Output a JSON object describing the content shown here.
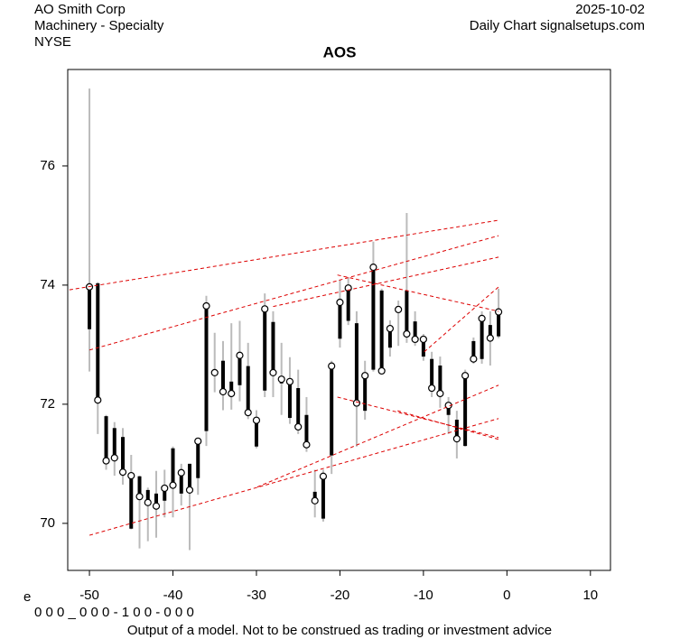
{
  "chart_data": {
    "type": "candlestick",
    "title": "AOS",
    "company": "AO Smith Corp",
    "industry": "Machinery - Specialty",
    "exchange": "NYSE",
    "date": "2025-10-02",
    "source": "Daily Chart signalsetups.com",
    "corner_mark": "e",
    "code": "0 0 0 _ 0 0 0 - 1 0 0 - 0 0 0",
    "footer": "Output of a model. Not to be construed as trading or investment advice",
    "x": [
      -50,
      -49,
      -48,
      -47,
      -46,
      -45,
      -44,
      -43,
      -42,
      -41,
      -40,
      -39,
      -38,
      -37,
      -36,
      -35,
      -34,
      -33,
      -32,
      -31,
      -30,
      -29,
      -28,
      -27,
      -26,
      -25,
      -24,
      -23,
      -22,
      -21,
      -20,
      -19,
      -18,
      -17,
      -16,
      -15,
      -14,
      -13,
      -12,
      -11,
      -10,
      -9,
      -8,
      -7,
      -6,
      -5,
      -4,
      -3,
      -2,
      -1
    ],
    "open": [
      73.26,
      74.03,
      71.8,
      71.6,
      71.45,
      69.91,
      70.79,
      70.56,
      70.5,
      70.38,
      71.26,
      70.5,
      71.0,
      70.76,
      71.55,
      72.58,
      72.73,
      72.38,
      72.32,
      72.64,
      71.29,
      72.23,
      73.38,
      72.35,
      71.77,
      72.27,
      71.82,
      70.53,
      70.08,
      71.14,
      73.1,
      73.4,
      73.36,
      71.89,
      72.58,
      73.91,
      72.95,
      73.65,
      73.91,
      73.39,
      72.8,
      72.76,
      72.65,
      71.82,
      71.74,
      71.3,
      73.06,
      72.76,
      73.33,
      73.14
    ],
    "high": [
      77.3,
      74.05,
      71.82,
      71.7,
      71.6,
      71.15,
      70.8,
      70.6,
      70.88,
      70.9,
      71.29,
      71.0,
      71.0,
      71.42,
      73.82,
      73.2,
      73.06,
      73.36,
      73.4,
      73.03,
      71.9,
      73.86,
      73.56,
      73.03,
      72.79,
      72.58,
      72.12,
      70.9,
      70.9,
      72.73,
      74.09,
      74.12,
      73.56,
      72.73,
      74.73,
      73.94,
      73.41,
      73.74,
      75.21,
      73.56,
      73.18,
      72.88,
      72.8,
      72.12,
      71.89,
      72.58,
      73.12,
      73.56,
      73.56,
      73.94
    ],
    "low": [
      72.55,
      71.5,
      70.9,
      70.8,
      70.65,
      69.9,
      69.58,
      69.7,
      69.76,
      70.1,
      70.1,
      70.3,
      69.55,
      70.48,
      71.3,
      72.2,
      71.9,
      71.91,
      72.05,
      71.75,
      71.26,
      72.12,
      72.12,
      71.82,
      71.67,
      71.5,
      71.2,
      70.1,
      70.03,
      70.83,
      72.95,
      73.33,
      71.29,
      71.74,
      72.55,
      72.5,
      72.8,
      72.98,
      73.03,
      72.98,
      72.73,
      72.12,
      71.94,
      71.5,
      71.09,
      71.29,
      72.68,
      72.68,
      72.65,
      73.11
    ],
    "close": [
      73.97,
      72.07,
      71.05,
      71.1,
      70.86,
      70.8,
      70.45,
      70.35,
      70.29,
      70.59,
      70.64,
      70.85,
      70.56,
      71.38,
      73.65,
      72.53,
      72.21,
      72.18,
      72.82,
      71.86,
      71.73,
      73.6,
      72.53,
      72.42,
      72.38,
      71.62,
      71.32,
      70.38,
      70.79,
      72.64,
      73.71,
      73.95,
      72.02,
      72.48,
      74.3,
      72.56,
      73.27,
      73.59,
      73.18,
      73.09,
      73.09,
      72.27,
      72.18,
      71.98,
      71.42,
      72.48,
      72.76,
      73.44,
      73.11,
      73.55
    ],
    "trendlines": [
      {
        "x": [
          -52.4,
          -1
        ],
        "y": [
          73.92,
          75.09
        ]
      },
      {
        "x": [
          -50,
          -1
        ],
        "y": [
          72.91,
          74.83
        ]
      },
      {
        "x": [
          -28,
          -1
        ],
        "y": [
          73.64,
          74.47
        ]
      },
      {
        "x": [
          -50,
          -1
        ],
        "y": [
          69.8,
          71.76
        ]
      },
      {
        "x": [
          -29.9,
          -1
        ],
        "y": [
          70.61,
          72.32
        ]
      },
      {
        "x": [
          -20.3,
          -1
        ],
        "y": [
          74.17,
          73.56
        ]
      },
      {
        "x": [
          -20.3,
          -1
        ],
        "y": [
          72.12,
          71.44
        ]
      },
      {
        "x": [
          -9.9,
          -1
        ],
        "y": [
          72.88,
          73.97
        ]
      },
      {
        "x": [
          -13.1,
          -1
        ],
        "y": [
          71.89,
          71.41
        ]
      }
    ],
    "wick_color": "#bbbbbb",
    "body_color": "#000000",
    "trend_color": "#dd0000",
    "xlim": [
      -52.6,
      12.4
    ],
    "ylim": [
      69.21,
      77.62
    ],
    "xticks": [
      -50,
      -40,
      -30,
      -20,
      -10,
      0,
      10
    ],
    "yticks": [
      70,
      72,
      74,
      76
    ]
  }
}
